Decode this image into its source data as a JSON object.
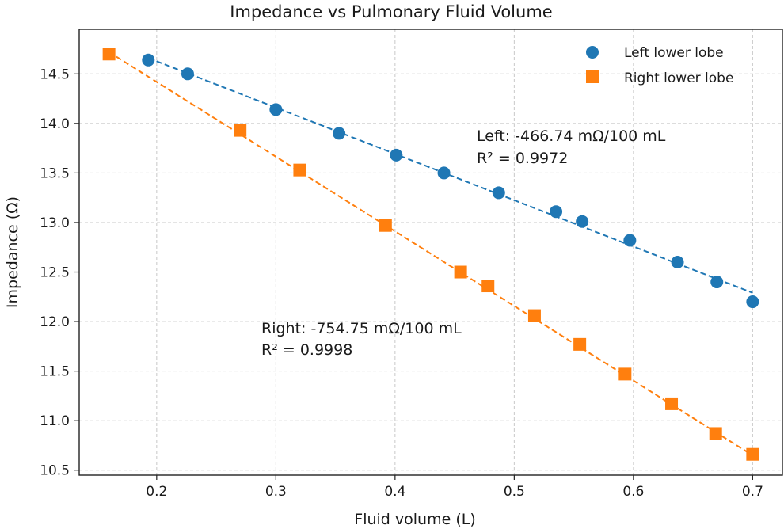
{
  "chart_data": {
    "type": "scatter",
    "title": "Impedance vs Pulmonary Fluid Volume",
    "xlabel": "Fluid volume (L)",
    "ylabel": "Impedance (Ω)",
    "xlim": [
      0.135,
      0.725
    ],
    "ylim": [
      10.45,
      14.95
    ],
    "xticks": [
      0.2,
      0.3,
      0.4,
      0.5,
      0.6,
      0.7
    ],
    "xtick_labels": [
      "0.2",
      "0.3",
      "0.4",
      "0.5",
      "0.6",
      "0.7"
    ],
    "yticks": [
      10.5,
      11.0,
      11.5,
      12.0,
      12.5,
      13.0,
      13.5,
      14.0,
      14.5
    ],
    "ytick_labels": [
      "10.5",
      "11.0",
      "11.5",
      "12.0",
      "12.5",
      "13.0",
      "13.5",
      "14.0",
      "14.5"
    ],
    "grid": true,
    "legend_position": "top-right",
    "series": [
      {
        "name": "Left lower lobe",
        "marker": "circle",
        "color": "#1f77b4",
        "x": [
          0.193,
          0.226,
          0.3,
          0.353,
          0.401,
          0.441,
          0.487,
          0.535,
          0.557,
          0.597,
          0.637,
          0.67,
          0.7
        ],
        "y": [
          14.64,
          14.5,
          14.14,
          13.9,
          13.68,
          13.5,
          13.3,
          13.11,
          13.01,
          12.82,
          12.6,
          12.4,
          12.2
        ],
        "fit": {
          "x": [
            0.193,
            0.7
          ],
          "y": [
            14.66,
            12.29
          ]
        },
        "annotation": [
          "Left: -466.74 mΩ/100 mL",
          "R² = 0.9972"
        ]
      },
      {
        "name": "Right lower lobe",
        "marker": "square",
        "color": "#ff7f0e",
        "x": [
          0.16,
          0.27,
          0.32,
          0.392,
          0.455,
          0.478,
          0.517,
          0.555,
          0.593,
          0.632,
          0.669,
          0.7
        ],
        "y": [
          14.7,
          13.93,
          13.53,
          12.97,
          12.5,
          12.36,
          12.06,
          11.77,
          11.47,
          11.17,
          10.87,
          10.66
        ],
        "fit": {
          "x": [
            0.16,
            0.7
          ],
          "y": [
            14.72,
            10.65
          ]
        },
        "annotation": [
          "Right: -754.75 mΩ/100 mL",
          "R² = 0.9998"
        ]
      }
    ]
  }
}
